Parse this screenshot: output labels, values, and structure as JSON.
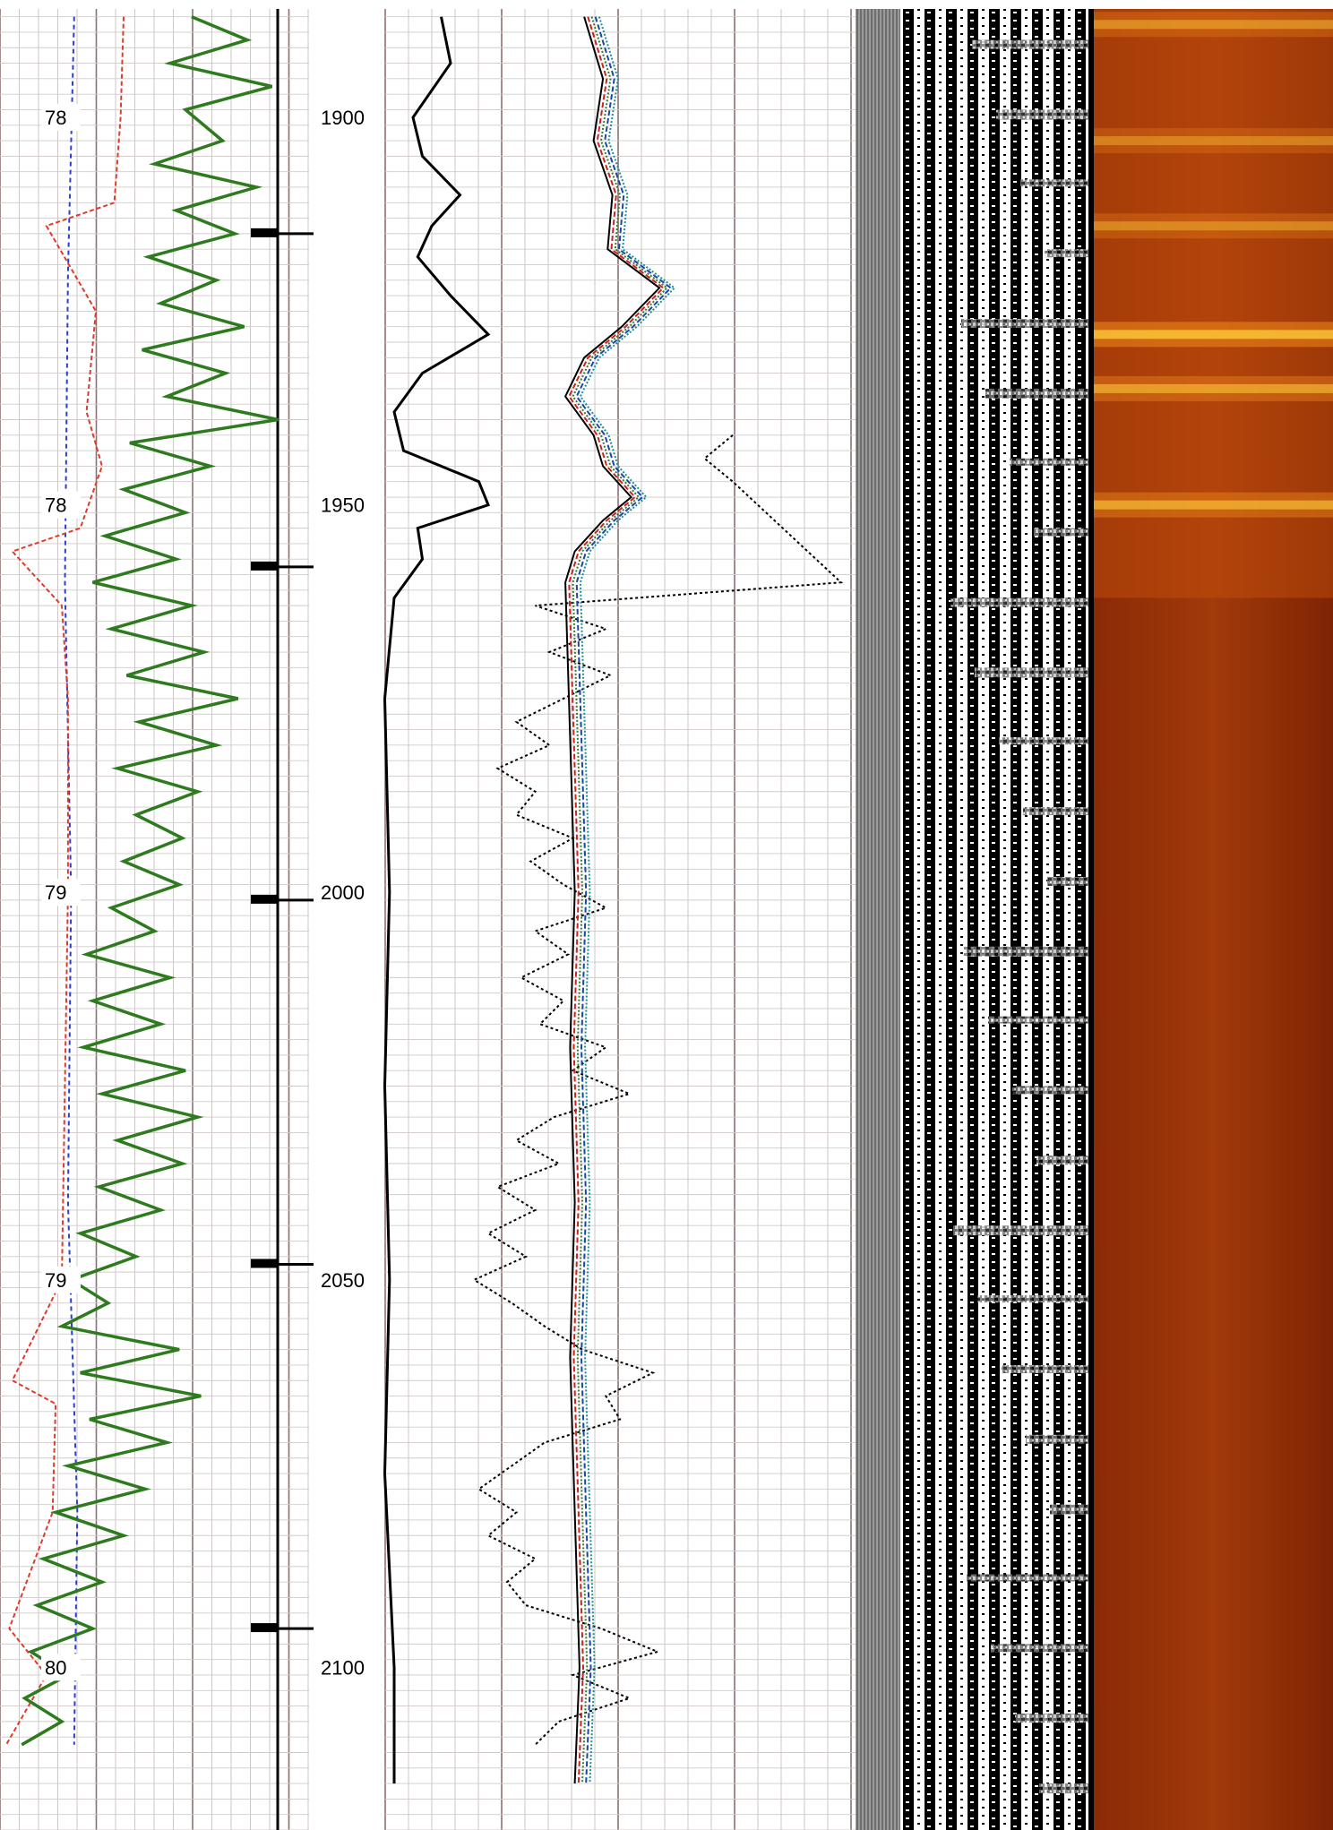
{
  "chart_data": {
    "type": "line",
    "title": "",
    "depth_axis": {
      "ticks": [
        "1900",
        "1950",
        "2000",
        "2050",
        "2100"
      ],
      "range": [
        1886,
        2121
      ]
    },
    "temperature_labels": [
      "78",
      "78",
      "79",
      "79",
      "80"
    ],
    "temperature_label_depths": [
      1900,
      1950,
      2000,
      2050,
      2100
    ],
    "track1_curves": {
      "green_depths": [
        1887,
        1890,
        1893,
        1896,
        1899,
        1903,
        1906,
        1909,
        1912,
        1915,
        1918,
        1921,
        1924,
        1927,
        1930,
        1933,
        1936,
        1939,
        1942,
        1945,
        1948,
        1951,
        1954,
        1957,
        1960,
        1963,
        1966,
        1969,
        1972,
        1975,
        1978,
        1981,
        1984,
        1987,
        1990,
        1993,
        1996,
        1999,
        2002,
        2005,
        2008,
        2011,
        2014,
        2017,
        2020,
        2023,
        2026,
        2029,
        2032,
        2035,
        2038,
        2041,
        2044,
        2047,
        2050,
        2053,
        2056,
        2059,
        2062,
        2065,
        2068,
        2071,
        2074,
        2077,
        2080,
        2083,
        2086,
        2089,
        2092,
        2095,
        2098,
        2101,
        2104,
        2107,
        2110
      ],
      "green_values": [
        0.62,
        0.8,
        0.55,
        0.88,
        0.6,
        0.72,
        0.5,
        0.83,
        0.57,
        0.76,
        0.48,
        0.7,
        0.52,
        0.79,
        0.46,
        0.73,
        0.54,
        0.9,
        0.42,
        0.68,
        0.4,
        0.6,
        0.34,
        0.57,
        0.3,
        0.62,
        0.36,
        0.66,
        0.41,
        0.77,
        0.45,
        0.7,
        0.38,
        0.64,
        0.44,
        0.59,
        0.4,
        0.58,
        0.36,
        0.5,
        0.28,
        0.55,
        0.3,
        0.52,
        0.27,
        0.6,
        0.33,
        0.64,
        0.38,
        0.59,
        0.32,
        0.52,
        0.26,
        0.44,
        0.23,
        0.35,
        0.2,
        0.58,
        0.26,
        0.65,
        0.29,
        0.54,
        0.22,
        0.47,
        0.18,
        0.4,
        0.14,
        0.33,
        0.12,
        0.3,
        0.1,
        0.22,
        0.08,
        0.2,
        0.07
      ],
      "red_depths": [
        1887,
        1900,
        1911,
        1914,
        1925,
        1938,
        1945,
        1953,
        1956,
        1963,
        1975,
        2000,
        2050,
        2063,
        2066,
        2080,
        2095,
        2101,
        2110
      ],
      "red_values": [
        0.4,
        0.39,
        0.37,
        0.15,
        0.31,
        0.28,
        0.33,
        0.26,
        0.04,
        0.2,
        0.22,
        0.22,
        0.2,
        0.04,
        0.18,
        0.17,
        0.03,
        0.15,
        0.02
      ],
      "blue_depths": [
        1887,
        1920,
        1960,
        2000,
        2040,
        2080,
        2110
      ],
      "blue_values": [
        0.24,
        0.22,
        0.21,
        0.23,
        0.22,
        0.25,
        0.24
      ]
    },
    "track3_curves": {
      "black_solid_depths": [
        1887,
        1893,
        1900,
        1905,
        1910,
        1914,
        1918,
        1923,
        1928,
        1933,
        1938,
        1943,
        1947,
        1950,
        1953,
        1957,
        1962,
        1975,
        2000,
        2025,
        2050,
        2075,
        2100,
        2115
      ],
      "black_solid_values": [
        0.1,
        0.12,
        0.04,
        0.06,
        0.14,
        0.08,
        0.05,
        0.12,
        0.2,
        0.06,
        0.0,
        0.02,
        0.18,
        0.2,
        0.05,
        0.06,
        0.0,
        -0.02,
        -0.01,
        -0.02,
        -0.01,
        -0.02,
        0.0,
        0.0
      ],
      "black_dotted_depths": [
        1941,
        1944,
        1947,
        1960,
        1963,
        1966,
        1969,
        1972,
        1975,
        1978,
        1981,
        1984,
        1987,
        1990,
        1993,
        1996,
        1999,
        2002,
        2005,
        2008,
        2011,
        2014,
        2017,
        2020,
        2023,
        2026,
        2029,
        2032,
        2035,
        2038,
        2041,
        2044,
        2047,
        2050,
        2053,
        2056,
        2059,
        2062,
        2065,
        2068,
        2071,
        2074,
        2077,
        2080,
        2083,
        2086,
        2089,
        2092,
        2095,
        2098,
        2101,
        2104,
        2107,
        2110
      ],
      "black_dotted_values": [
        0.72,
        0.66,
        0.72,
        0.95,
        0.3,
        0.45,
        0.33,
        0.46,
        0.36,
        0.26,
        0.33,
        0.22,
        0.3,
        0.26,
        0.38,
        0.29,
        0.36,
        0.45,
        0.3,
        0.37,
        0.27,
        0.36,
        0.31,
        0.45,
        0.38,
        0.5,
        0.34,
        0.26,
        0.35,
        0.22,
        0.3,
        0.2,
        0.28,
        0.17,
        0.25,
        0.32,
        0.4,
        0.55,
        0.45,
        0.48,
        0.32,
        0.25,
        0.18,
        0.26,
        0.2,
        0.3,
        0.24,
        0.28,
        0.44,
        0.56,
        0.38,
        0.5,
        0.35,
        0.3
      ],
      "bundle_depths": [
        1887,
        1895,
        1903,
        1910,
        1917,
        1922,
        1927,
        1931,
        1936,
        1941,
        1945,
        1949,
        1952,
        1956,
        1960,
        1980,
        2000,
        2020,
        2040,
        2060,
        2080,
        2100,
        2115
      ],
      "bundle_values": [
        0.82,
        0.86,
        0.84,
        0.88,
        0.87,
        0.98,
        0.9,
        0.82,
        0.78,
        0.84,
        0.86,
        0.92,
        0.86,
        0.8,
        0.78,
        0.79,
        0.8,
        0.79,
        0.8,
        0.79,
        0.8,
        0.81,
        0.8
      ],
      "bundle_colors": [
        "#000000",
        "#cc2222",
        "#2e7d2e",
        "#1a44b0",
        "#1a8f8f"
      ]
    },
    "track2_event_depths": [
      1915,
      1958,
      2001,
      2048,
      2095
    ],
    "orange_bright_depths": [
      1888,
      1903,
      1914,
      1928,
      1935,
      1950
    ],
    "orange_bright_levels": [
      0.6,
      0.5,
      0.55,
      1.0,
      0.75,
      0.8
    ]
  }
}
